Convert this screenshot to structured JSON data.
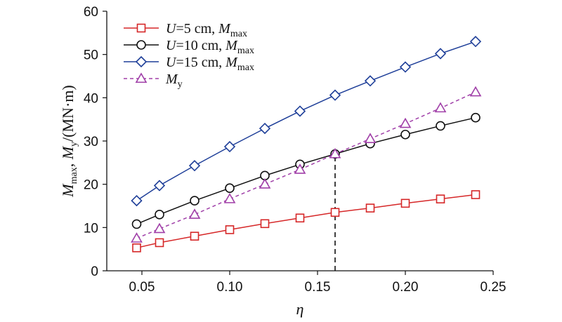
{
  "chart_data": {
    "type": "line",
    "xlabel": "η",
    "ylabel": "M_max, M_y/(MN·m)",
    "xlim": [
      0.03,
      0.25
    ],
    "ylim": [
      0,
      60
    ],
    "xticks": [
      0.05,
      0.1,
      0.15,
      0.2,
      0.25
    ],
    "xtick_labels": [
      "0.05",
      "0.10",
      "0.15",
      "0.20",
      "0.25"
    ],
    "yticks": [
      0,
      10,
      20,
      30,
      40,
      50,
      60
    ],
    "ytick_labels": [
      "0",
      "10",
      "20",
      "30",
      "40",
      "50",
      "60"
    ],
    "grid": false,
    "legend_position": "top-left",
    "x": [
      0.047,
      0.06,
      0.08,
      0.1,
      0.12,
      0.14,
      0.16,
      0.18,
      0.2,
      0.22,
      0.24
    ],
    "series": [
      {
        "name": "U=5 cm, M_max",
        "legend": {
          "var": "U",
          "rest": "=5 cm, ",
          "main": "M",
          "sub": "max"
        },
        "color": "#d62728",
        "marker": "square",
        "dashed": false,
        "values": [
          5.3,
          6.5,
          8.0,
          9.5,
          10.9,
          12.2,
          13.5,
          14.5,
          15.6,
          16.6,
          17.6
        ]
      },
      {
        "name": "U=10 cm, M_max",
        "legend": {
          "var": "U",
          "rest": "=10 cm, ",
          "main": "M",
          "sub": "max"
        },
        "color": "#111111",
        "marker": "circle",
        "dashed": false,
        "values": [
          10.8,
          13.0,
          16.2,
          19.1,
          22.0,
          24.6,
          27.0,
          29.4,
          31.5,
          33.5,
          35.4
        ]
      },
      {
        "name": "U=15 cm, M_max",
        "legend": {
          "var": "U",
          "rest": "=15 cm, ",
          "main": "M",
          "sub": "max"
        },
        "color": "#1f3f99",
        "marker": "diamond",
        "dashed": false,
        "values": [
          16.2,
          19.7,
          24.3,
          28.7,
          32.9,
          36.9,
          40.6,
          43.9,
          47.1,
          50.2,
          53.0
        ]
      },
      {
        "name": "M_y",
        "legend": {
          "var": "",
          "rest": "",
          "main": "M",
          "sub": "y"
        },
        "color": "#a03fa8",
        "marker": "triangle",
        "dashed": true,
        "values": [
          7.5,
          9.7,
          13.0,
          16.6,
          20.0,
          23.4,
          27.0,
          30.5,
          34.0,
          37.6,
          41.3
        ]
      }
    ],
    "annotations": [
      {
        "type": "vertical-dashed-line",
        "x": 0.16,
        "y_from": 0,
        "y_to": 27.0,
        "color": "#111111"
      }
    ]
  }
}
